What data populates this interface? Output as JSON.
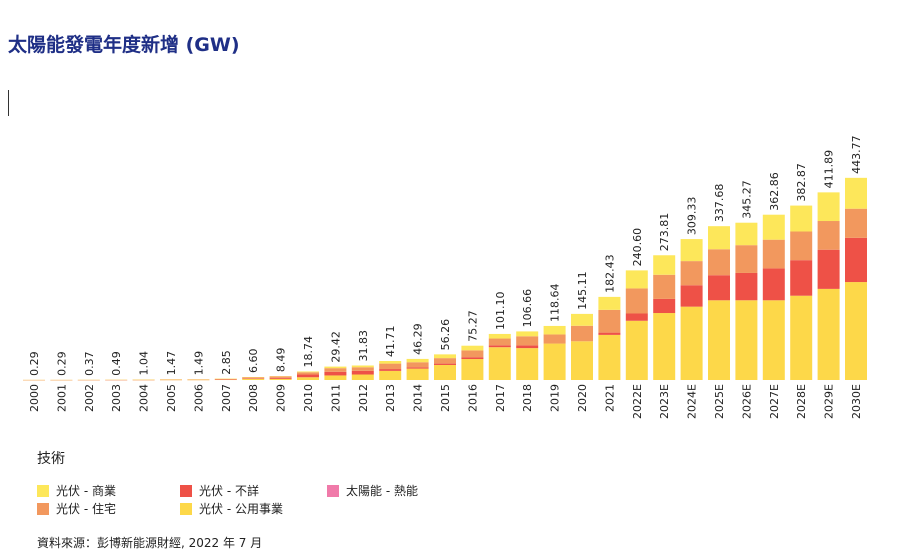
{
  "title": "太陽能發電年度新增 (GW)",
  "legend": {
    "title": "技術",
    "items": [
      {
        "label": "光伏 - 商業",
        "color": "#fde75a"
      },
      {
        "label": "光伏 - 住宅",
        "color": "#f2985e"
      },
      {
        "label": "光伏 - 不詳",
        "color": "#ee5147"
      },
      {
        "label": "光伏 - 公用事業",
        "color": "#fdd849"
      },
      {
        "label": "太陽能 - 熱能",
        "color": "#f07aa9"
      }
    ]
  },
  "source": "資料來源：彭博新能源財經, 2022 年 7 月",
  "chart_data": {
    "type": "bar",
    "stacked": true,
    "categories": [
      "2000",
      "2001",
      "2002",
      "2003",
      "2004",
      "2005",
      "2006",
      "2007",
      "2008",
      "2009",
      "2010",
      "2011",
      "2012",
      "2013",
      "2014",
      "2015",
      "2016",
      "2017",
      "2018",
      "2019",
      "2020",
      "2021",
      "2022E",
      "2023E",
      "2024E",
      "2025E",
      "2026E",
      "2027E",
      "2028E",
      "2029E",
      "2030E"
    ],
    "totals": [
      0.29,
      0.29,
      0.37,
      0.49,
      1.04,
      1.47,
      1.49,
      2.85,
      6.6,
      8.49,
      18.74,
      29.42,
      31.83,
      41.71,
      46.29,
      56.26,
      75.27,
      101.1,
      106.66,
      118.64,
      145.11,
      182.43,
      240.6,
      273.81,
      309.33,
      337.68,
      345.27,
      362.86,
      382.87,
      411.89,
      443.77
    ],
    "total_labels": [
      "0.29",
      "0.29",
      "0.37",
      "0.49",
      "1.04",
      "1.47",
      "1.49",
      "2.85",
      "6.60",
      "8.49",
      "18.74",
      "29.42",
      "31.83",
      "41.71",
      "46.29",
      "56.26",
      "75.27",
      "101.10",
      "106.66",
      "118.64",
      "145.11",
      "182.43",
      "240.60",
      "273.81",
      "309.33",
      "337.68",
      "345.27",
      "362.86",
      "382.87",
      "411.89",
      "443.77"
    ],
    "series": [
      {
        "name": "光伏 - 公用事業",
        "color": "#fdd849",
        "values": [
          0,
          0,
          0,
          0,
          0.1,
          0.2,
          0.2,
          0.6,
          2.5,
          2.5,
          6,
          10,
          12,
          20,
          25,
          33,
          46,
          72,
          70,
          80,
          85,
          99,
          130,
          147,
          161,
          175,
          175,
          175,
          185,
          200,
          215
        ]
      },
      {
        "name": "光伏 - 不詳",
        "color": "#ee5147",
        "values": [
          0.05,
          0.05,
          0.07,
          0.09,
          0.2,
          0.27,
          0.29,
          0.5,
          1.2,
          2.5,
          6,
          8,
          8,
          4,
          3,
          3,
          4,
          4,
          6,
          0,
          0,
          5,
          16,
          31,
          47,
          55,
          60,
          70,
          78,
          86,
          97
        ]
      },
      {
        "name": "光伏 - 住宅",
        "color": "#f2985e",
        "values": [
          0.14,
          0.14,
          0.2,
          0.3,
          0.6,
          0.8,
          0.8,
          1.5,
          2.5,
          3,
          5,
          8,
          8,
          12,
          11,
          12,
          15,
          15,
          20,
          20,
          34,
          50,
          55,
          53,
          53,
          57,
          61,
          63,
          63,
          63,
          64
        ]
      },
      {
        "name": "光伏 - 商業",
        "color": "#fde75a",
        "values": [
          0.1,
          0.1,
          0.1,
          0.1,
          0.14,
          0.2,
          0.2,
          0.25,
          0.4,
          0.49,
          1.74,
          3.42,
          3.83,
          5.71,
          7.29,
          8.26,
          10.27,
          10.1,
          10.66,
          18.64,
          26.11,
          28.43,
          39.6,
          42.81,
          48.33,
          50.68,
          49.27,
          54.86,
          56.87,
          62.89,
          67.77
        ]
      },
      {
        "name": "太陽能 - 熱能",
        "color": "#f07aa9",
        "values": [
          0,
          0,
          0,
          0,
          0,
          0,
          0,
          0,
          0,
          0,
          0,
          0,
          0,
          0,
          0,
          0,
          0,
          0,
          0,
          0,
          0,
          0,
          0,
          0,
          0,
          0,
          0,
          0,
          0,
          0,
          0
        ]
      }
    ],
    "ylim": [
      0,
      450
    ],
    "xlabel": "",
    "ylabel": "",
    "grid": false,
    "legend_position": "bottom-left"
  }
}
